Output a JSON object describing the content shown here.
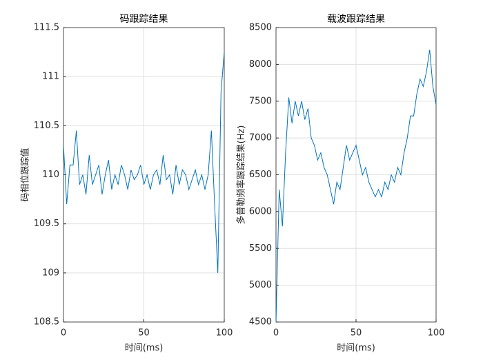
{
  "chart_data": [
    {
      "type": "line",
      "title": "码跟踪结果",
      "xlabel": "时间(ms)",
      "ylabel": "码相位跟踪值",
      "x": [
        0,
        2,
        4,
        6,
        8,
        10,
        12,
        14,
        16,
        18,
        20,
        22,
        24,
        26,
        28,
        30,
        32,
        34,
        36,
        38,
        40,
        42,
        44,
        46,
        48,
        50,
        52,
        54,
        56,
        58,
        60,
        62,
        64,
        66,
        68,
        70,
        72,
        74,
        76,
        78,
        80,
        82,
        84,
        86,
        88,
        90,
        92,
        94,
        96,
        98,
        100
      ],
      "values": [
        110.3,
        109.7,
        110.1,
        110.1,
        110.45,
        109.9,
        110.0,
        109.8,
        110.2,
        109.9,
        110.0,
        110.1,
        109.8,
        110.0,
        110.15,
        109.85,
        110.0,
        109.9,
        110.1,
        110.0,
        109.85,
        110.05,
        109.95,
        110.0,
        110.1,
        109.9,
        110.0,
        109.85,
        110.0,
        110.05,
        109.9,
        110.2,
        109.95,
        110.0,
        109.8,
        110.1,
        109.9,
        110.05,
        110.0,
        109.85,
        109.95,
        110.05,
        109.9,
        110.0,
        109.85,
        110.0,
        110.45,
        109.7,
        109.0,
        110.85,
        111.25
      ],
      "color": "#0072bd",
      "xlim": [
        0,
        100
      ],
      "xticks": [
        0,
        50,
        100
      ],
      "ylim": [
        108.5,
        111.5
      ],
      "yticks": [
        108.5,
        109,
        109.5,
        110,
        110.5,
        111,
        111.5
      ],
      "grid": true
    },
    {
      "type": "line",
      "title": "载波跟踪结果",
      "xlabel": "时间(ms)",
      "ylabel": "多普勒频率跟踪结果(Hz)",
      "x": [
        0,
        2,
        4,
        6,
        8,
        10,
        12,
        14,
        16,
        18,
        20,
        22,
        24,
        26,
        28,
        30,
        32,
        34,
        36,
        38,
        40,
        42,
        44,
        46,
        48,
        50,
        52,
        54,
        56,
        58,
        60,
        62,
        64,
        66,
        68,
        70,
        72,
        74,
        76,
        78,
        80,
        82,
        84,
        86,
        88,
        90,
        92,
        94,
        96,
        98,
        100
      ],
      "values": [
        4500,
        6300,
        5800,
        6800,
        7550,
        7200,
        7500,
        7300,
        7500,
        7250,
        7400,
        7000,
        6900,
        6700,
        6800,
        6600,
        6500,
        6300,
        6100,
        6400,
        6300,
        6600,
        6900,
        6700,
        6800,
        6900,
        6700,
        6500,
        6600,
        6400,
        6300,
        6200,
        6300,
        6200,
        6400,
        6300,
        6500,
        6400,
        6600,
        6500,
        6800,
        7000,
        7300,
        7300,
        7600,
        7800,
        7700,
        7900,
        8200,
        7700,
        7450
      ],
      "color": "#0072bd",
      "xlim": [
        0,
        100
      ],
      "xticks": [
        0,
        50,
        100
      ],
      "ylim": [
        4500,
        8500
      ],
      "yticks": [
        4500,
        5000,
        5500,
        6000,
        6500,
        7000,
        7500,
        8000,
        8500
      ],
      "grid": true
    }
  ]
}
